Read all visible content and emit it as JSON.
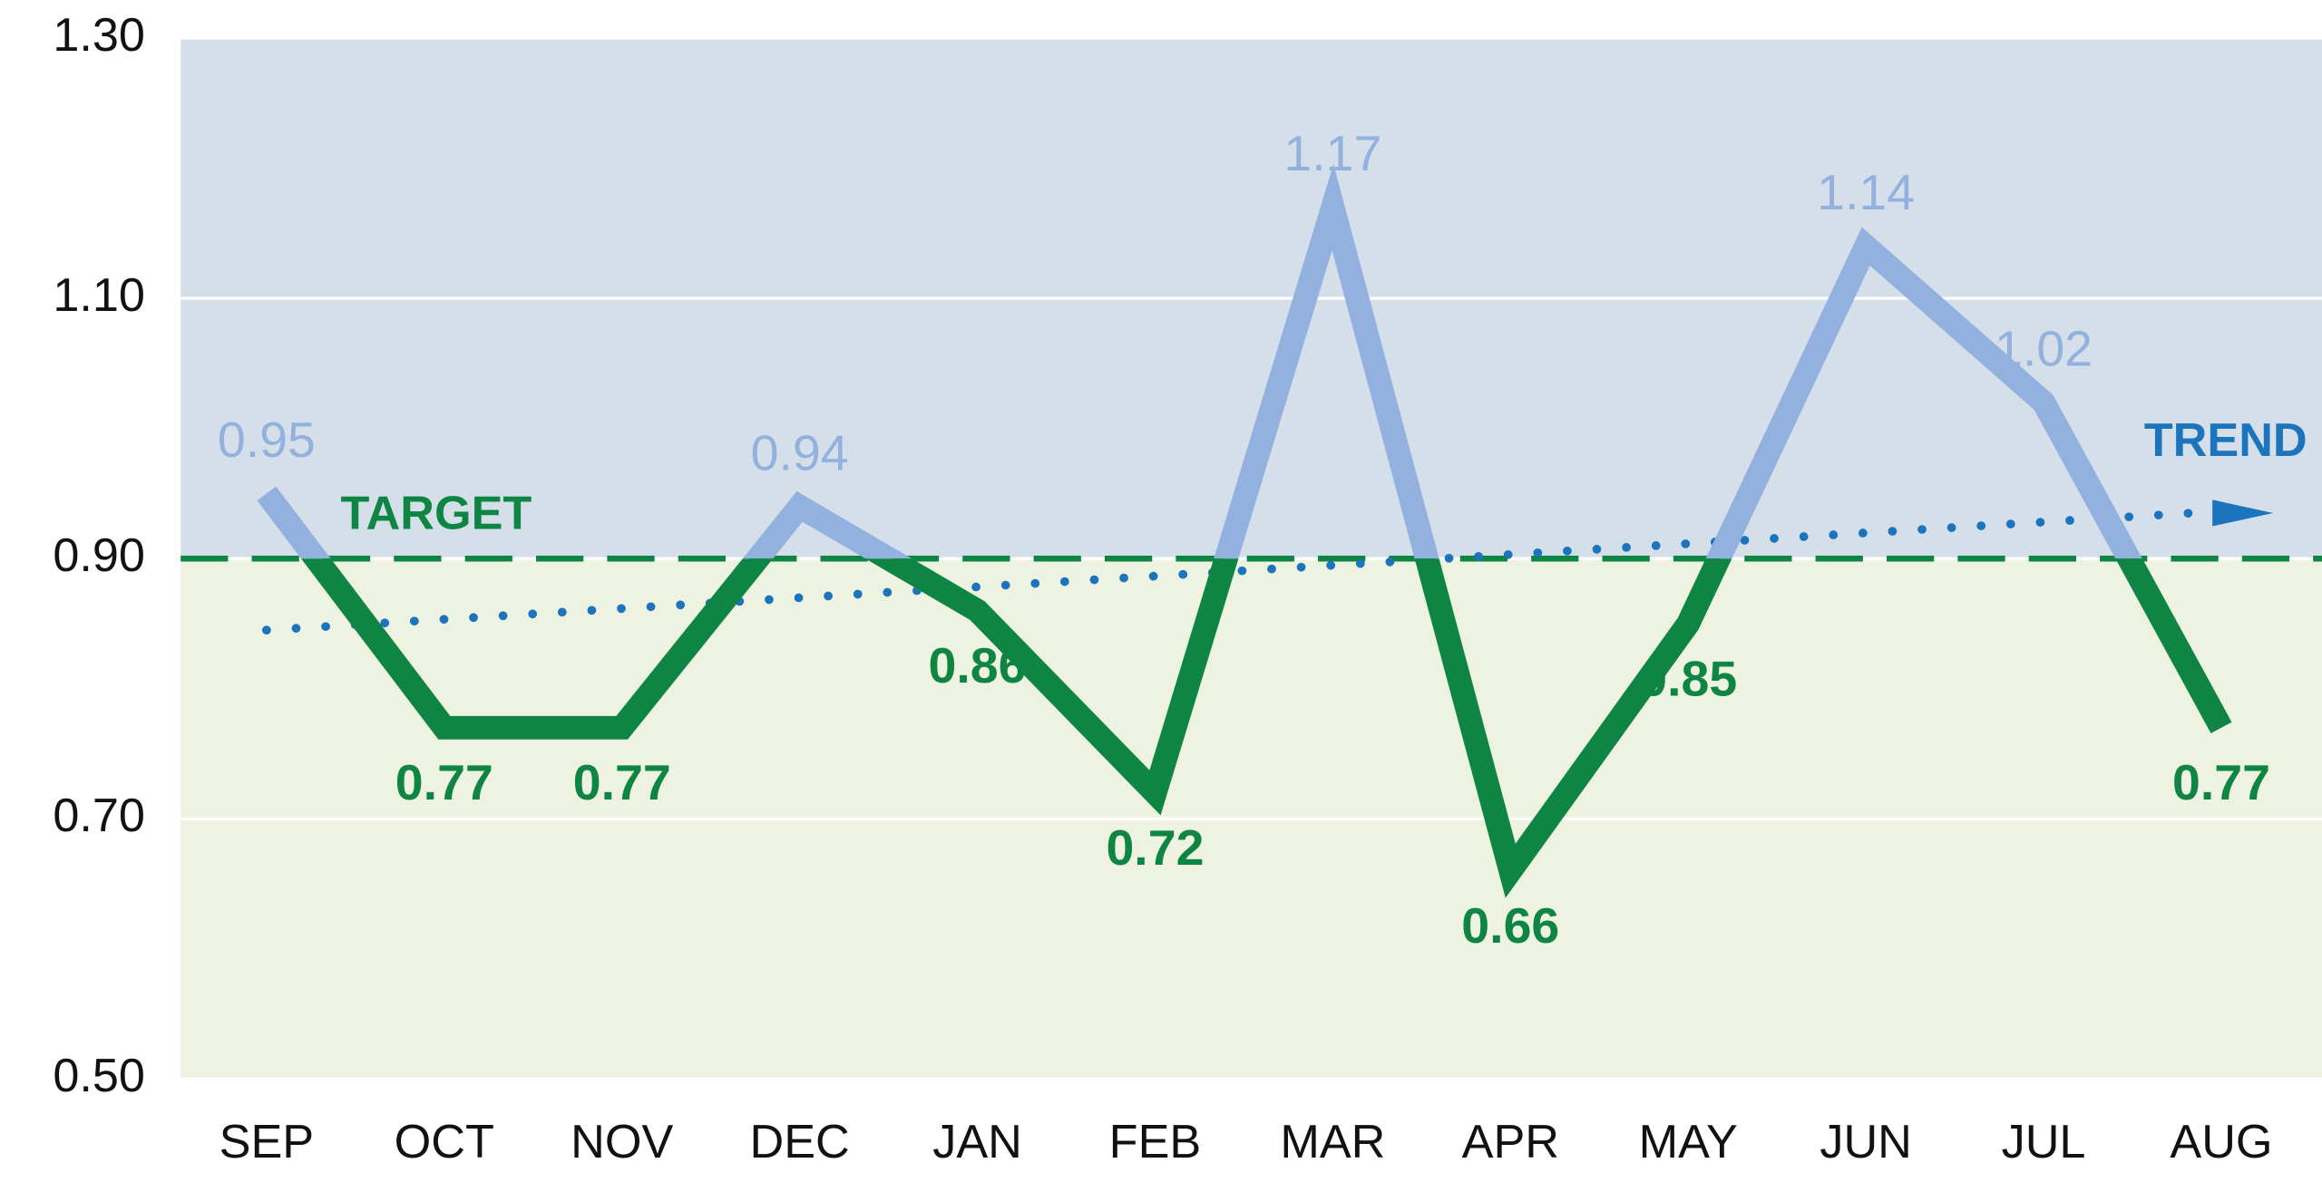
{
  "chart_data": {
    "type": "line",
    "categories": [
      "SEP",
      "OCT",
      "NOV",
      "DEC",
      "JAN",
      "FEB",
      "MAR",
      "APR",
      "MAY",
      "JUN",
      "JUL",
      "AUG"
    ],
    "values": [
      0.95,
      0.77,
      0.77,
      0.94,
      0.86,
      0.72,
      1.17,
      0.66,
      0.85,
      1.14,
      1.02,
      0.77
    ],
    "color_above": "#93b1de",
    "color_below": "#0e8543",
    "target": {
      "label": "TARGET",
      "value": 0.9,
      "color": "#0e8543"
    },
    "trend": {
      "label": "TREND",
      "values": [
        0.845,
        0.935
      ],
      "color": "#1c75bc"
    },
    "ylim": [
      0.5,
      1.3
    ],
    "yticks": [
      {
        "value": 0.5,
        "label": "0.50"
      },
      {
        "value": 0.7,
        "label": "0.70"
      },
      {
        "value": 0.9,
        "label": "0.90"
      },
      {
        "value": 1.1,
        "label": "1.10"
      },
      {
        "value": 1.3,
        "label": "1.30"
      }
    ],
    "grid": true
  }
}
